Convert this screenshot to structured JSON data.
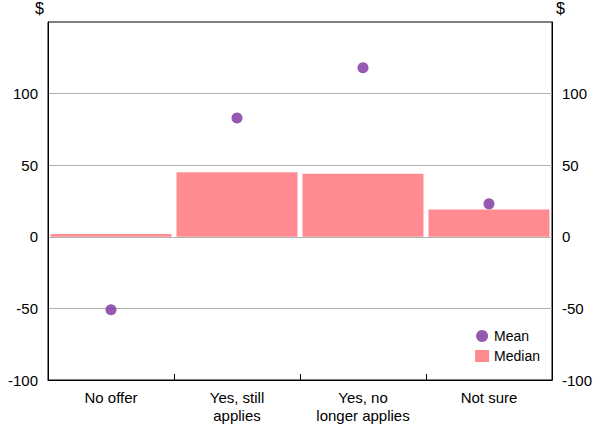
{
  "chart_data": {
    "type": "bar",
    "y_label": "$",
    "y2_label": "$",
    "categories": [
      "No offer",
      "Yes, still\napplies",
      "Yes, no\nlonger applies",
      "Not sure"
    ],
    "series": [
      {
        "name": "Mean",
        "type": "scatter",
        "marker": "circle",
        "color": "#7b2f9f",
        "values": [
          -51,
          83,
          118,
          23
        ]
      },
      {
        "name": "Median",
        "type": "bar",
        "color": "#ff8a8f",
        "values": [
          2,
          45,
          44,
          19
        ]
      }
    ],
    "ylim": [
      -100,
      150
    ],
    "yticks": [
      -100,
      -50,
      0,
      50,
      100
    ],
    "y2lim": [
      -100,
      150
    ],
    "y2ticks": [
      -100,
      -50,
      0,
      50,
      100
    ],
    "grid": true,
    "legend": "lower right"
  }
}
